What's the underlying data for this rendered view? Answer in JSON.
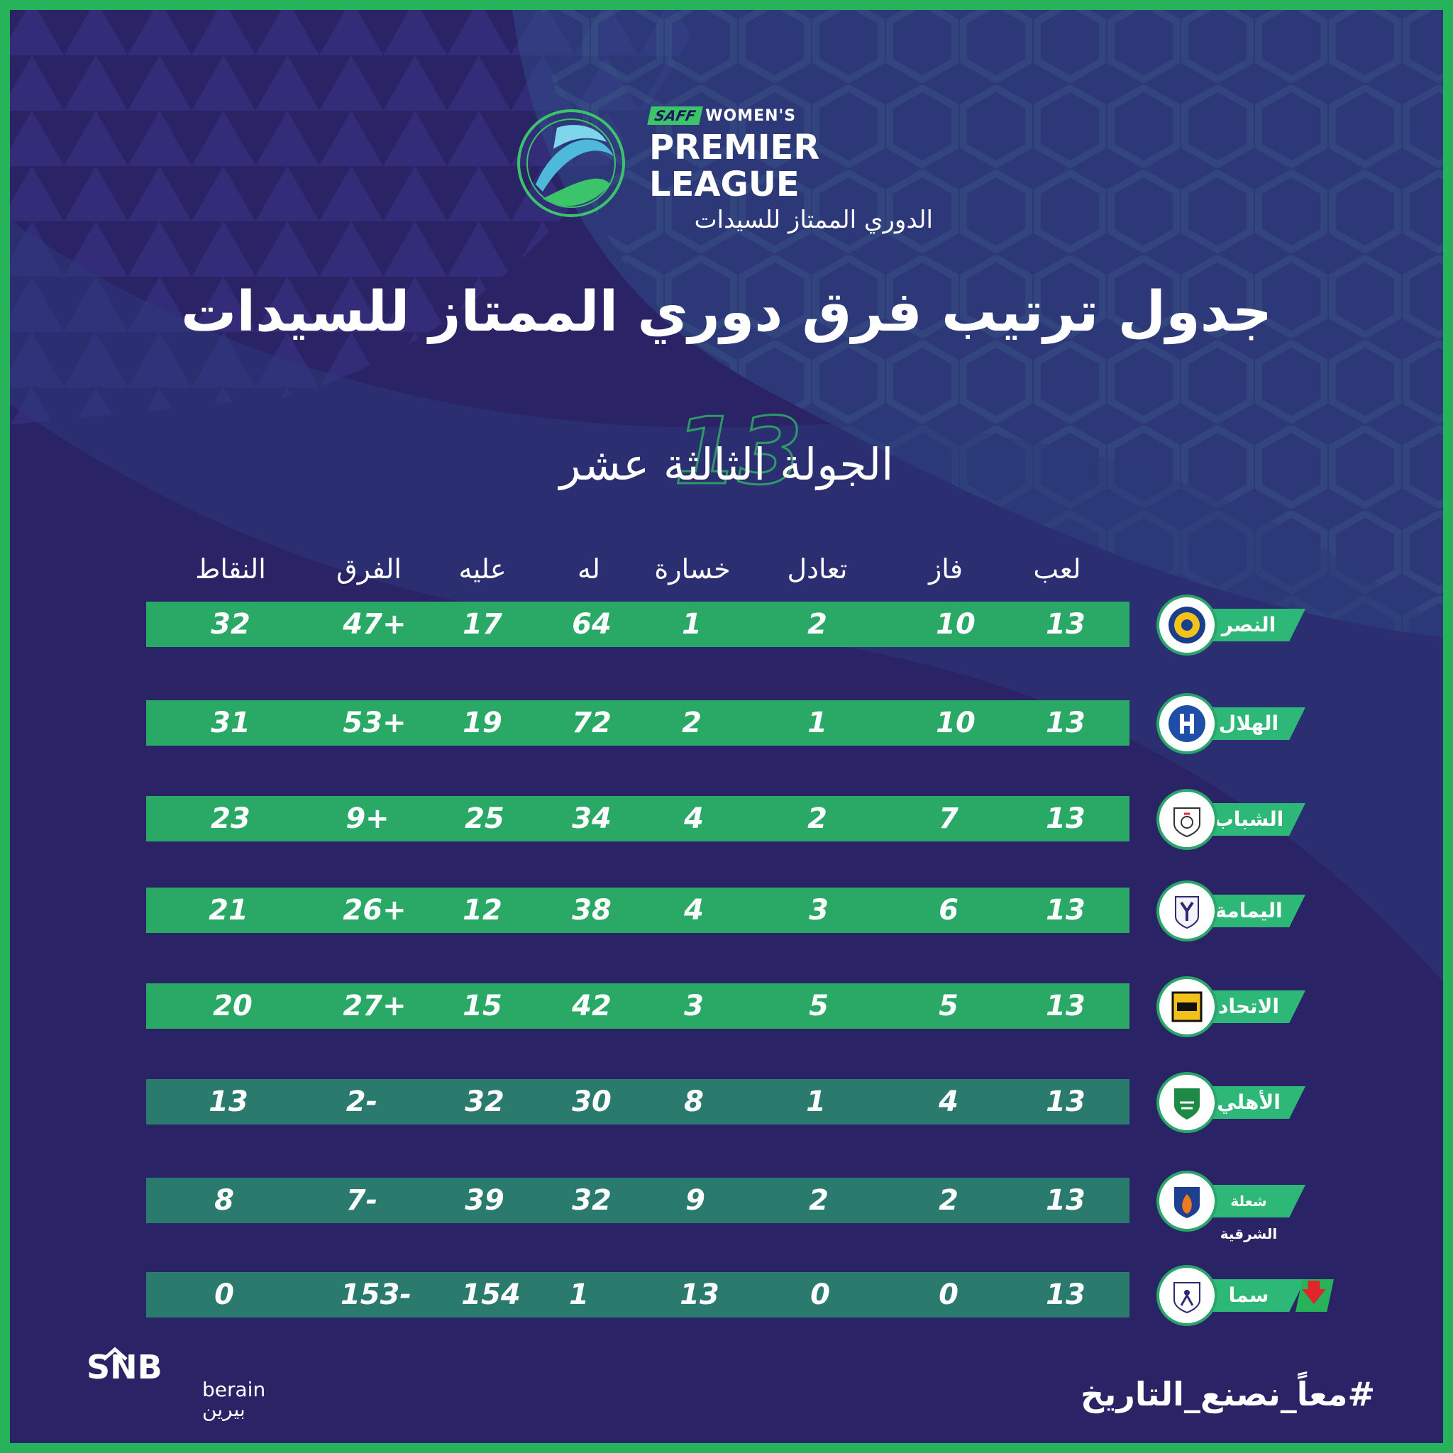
{
  "brand": {
    "saff": "SAFF",
    "womens": "WOMEN'S",
    "league_en": "PREMIER LEAGUE",
    "league_ar": "الدوري الممتاز للسيدات"
  },
  "title": "جدول ترتيب فرق دوري الممتاز للسيدات",
  "round": {
    "number": "13",
    "label": "الجولة الثالثة عشر"
  },
  "headers": {
    "played": "لعب",
    "won": "فاز",
    "drawn": "تعادل",
    "lost": "خسارة",
    "goals_for": "له",
    "goals_against": "عليه",
    "goal_diff": "الفرق",
    "points": "النقاط"
  },
  "teams": [
    {
      "name": "النصر",
      "played": "13",
      "won": "10",
      "drawn": "2",
      "lost": "1",
      "gf": "64",
      "ga": "17",
      "gd": "47+",
      "pts": "32",
      "style": "top"
    },
    {
      "name": "الهلال",
      "played": "13",
      "won": "10",
      "drawn": "1",
      "lost": "2",
      "gf": "72",
      "ga": "19",
      "gd": "53+",
      "pts": "31",
      "style": "top"
    },
    {
      "name": "الشباب",
      "played": "13",
      "won": "7",
      "drawn": "2",
      "lost": "4",
      "gf": "34",
      "ga": "25",
      "gd": "9+",
      "pts": "23",
      "style": "top"
    },
    {
      "name": "اليمامة",
      "played": "13",
      "won": "6",
      "drawn": "3",
      "lost": "4",
      "gf": "38",
      "ga": "12",
      "gd": "26+",
      "pts": "21",
      "style": "top"
    },
    {
      "name": "الاتحاد",
      "played": "13",
      "won": "5",
      "drawn": "5",
      "lost": "3",
      "gf": "42",
      "ga": "15",
      "gd": "27+",
      "pts": "20",
      "style": "top"
    },
    {
      "name": "الأهلي",
      "played": "13",
      "won": "4",
      "drawn": "1",
      "lost": "8",
      "gf": "30",
      "ga": "32",
      "gd": "2-",
      "pts": "13",
      "style": "mid"
    },
    {
      "name": "شعلة الشرقية",
      "played": "13",
      "won": "2",
      "drawn": "2",
      "lost": "9",
      "gf": "32",
      "ga": "39",
      "gd": "7-",
      "pts": "8",
      "style": "mid"
    },
    {
      "name": "سما",
      "played": "13",
      "won": "0",
      "drawn": "0",
      "lost": "13",
      "gf": "1",
      "ga": "154",
      "gd": "153-",
      "pts": "0",
      "style": "mid",
      "relegated": true
    }
  ],
  "sponsors": {
    "snb": "SNB",
    "berain_en": "berain",
    "berain_ar": "بيرين"
  },
  "hashtag": "#معاً_نصنع_التاريخ",
  "colors": {
    "background": "#2a2366",
    "frame": "#27b35a",
    "top_bar": "#2aa866",
    "mid_bar": "#2a7a6e",
    "team_tag": "#2db878",
    "relegation_arrow": "#e0262b"
  },
  "icons": {
    "relegation": "arrow-down-icon"
  }
}
